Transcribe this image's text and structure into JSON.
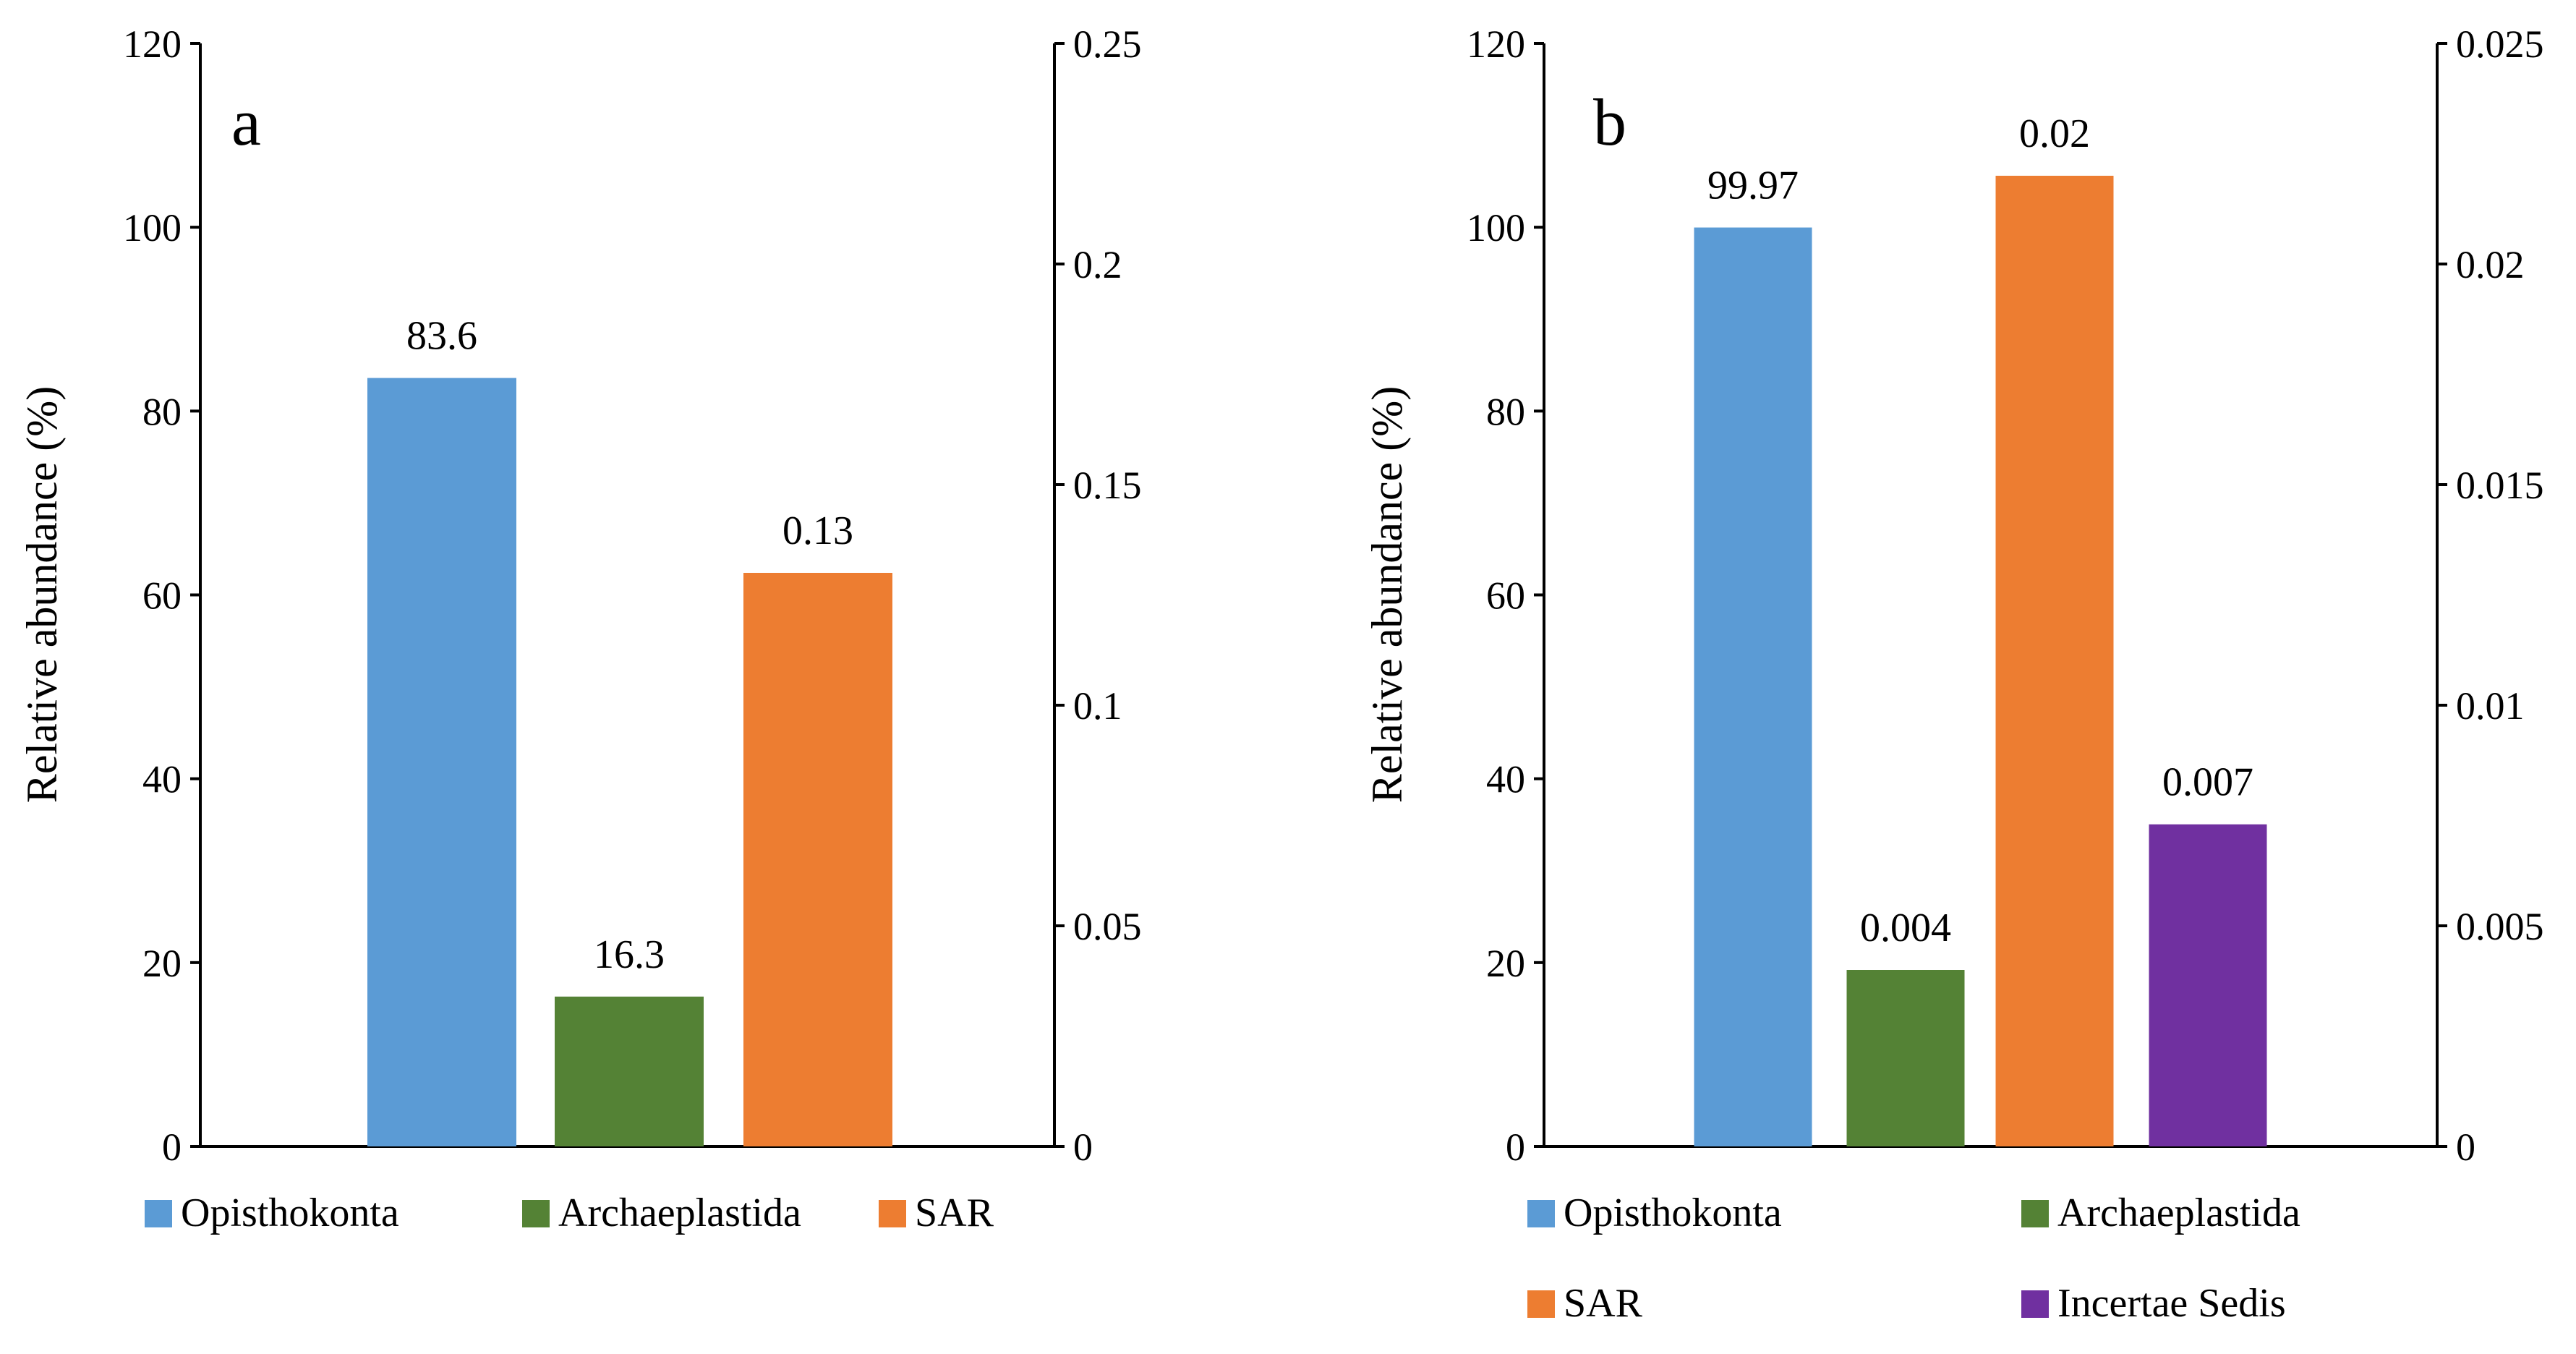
{
  "chart_data": [
    {
      "type": "bar",
      "panel_label": "a",
      "ylabel": "Relative abundance (%)",
      "y_left": {
        "ylim": [
          0,
          120
        ],
        "ticks": [
          "0",
          "20",
          "40",
          "60",
          "80",
          "100",
          "120"
        ]
      },
      "y_right": {
        "ylim": [
          0,
          0.25
        ],
        "ticks": [
          "0",
          "0.05",
          "0.1",
          "0.15",
          "0.2",
          "0.25"
        ]
      },
      "bars": [
        {
          "category": "Opisthokonta",
          "value": 83.6,
          "axis": "left",
          "label": "83.6",
          "color": "#5B9BD5"
        },
        {
          "category": "Archaeplastida",
          "value": 16.3,
          "axis": "left",
          "label": "16.3",
          "color": "#548235"
        },
        {
          "category": "SAR",
          "value": 0.13,
          "axis": "right",
          "label": "0.13",
          "color": "#ED7D31"
        }
      ],
      "legend": [
        {
          "name": "Opisthokonta",
          "color": "#5B9BD5"
        },
        {
          "name": "Archaeplastida",
          "color": "#548235"
        },
        {
          "name": "SAR",
          "color": "#ED7D31"
        }
      ]
    },
    {
      "type": "bar",
      "panel_label": "b",
      "ylabel": "Relative abundance (%)",
      "y_left": {
        "ylim": [
          0,
          120
        ],
        "ticks": [
          "0",
          "20",
          "40",
          "60",
          "80",
          "100",
          "120"
        ]
      },
      "y_right": {
        "ylim": [
          0,
          0.025
        ],
        "ticks": [
          "0",
          "0.005",
          "0.01",
          "0.015",
          "0.02",
          "0.025"
        ]
      },
      "bars": [
        {
          "category": "Opisthokonta",
          "value": 99.97,
          "axis": "left",
          "label": "99.97",
          "color": "#5B9BD5"
        },
        {
          "category": "Archaeplastida",
          "value": 0.004,
          "axis": "right",
          "label": "0.004",
          "color": "#548235"
        },
        {
          "category": "SAR",
          "value": 0.022,
          "axis": "right",
          "label": "0.02",
          "color": "#ED7D31"
        },
        {
          "category": "Incertae Sedis",
          "value": 0.0073,
          "axis": "right",
          "label": "0.007",
          "color": "#7030A0"
        }
      ],
      "legend": [
        {
          "name": "Opisthokonta",
          "color": "#5B9BD5"
        },
        {
          "name": "Archaeplastida",
          "color": "#548235"
        },
        {
          "name": "SAR",
          "color": "#ED7D31"
        },
        {
          "name": "Incertae Sedis",
          "color": "#7030A0"
        }
      ]
    }
  ]
}
